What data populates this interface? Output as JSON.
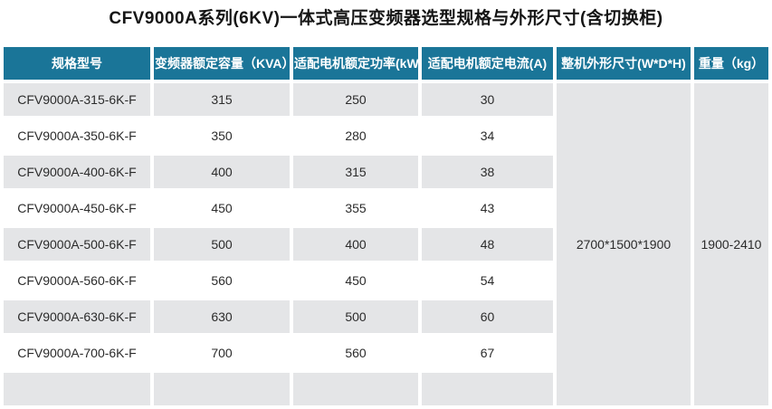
{
  "title": "CFV9000A系列(6KV)一体式高压变频器选型规格与外形尺寸(含切换柜)",
  "table": {
    "columns": [
      "规格型号",
      "变频器额定容量（KVA）",
      "适配电机额定功率(kW)",
      "适配电机额定电流(A)",
      "整机外形尺寸(W*D*H)",
      "重量（kg）"
    ],
    "rows": [
      [
        "CFV9000A-315-6K-F",
        "315",
        "250",
        "30"
      ],
      [
        "CFV9000A-350-6K-F",
        "350",
        "280",
        "34"
      ],
      [
        "CFV9000A-400-6K-F",
        "400",
        "315",
        "38"
      ],
      [
        "CFV9000A-450-6K-F",
        "450",
        "355",
        "43"
      ],
      [
        "CFV9000A-500-6K-F",
        "500",
        "400",
        "48"
      ],
      [
        "CFV9000A-560-6K-F",
        "560",
        "450",
        "54"
      ],
      [
        "CFV9000A-630-6K-F",
        "630",
        "500",
        "60"
      ],
      [
        "CFV9000A-700-6K-F",
        "700",
        "560",
        "67"
      ]
    ],
    "merged": {
      "dimensions": "2700*1500*1900",
      "weight": "1900-2410"
    }
  },
  "colors": {
    "header_bg": "#1a7598",
    "header_text": "#ffffff",
    "row_alt_bg": "#e4e5e7",
    "body_text": "#2b2b2b"
  }
}
